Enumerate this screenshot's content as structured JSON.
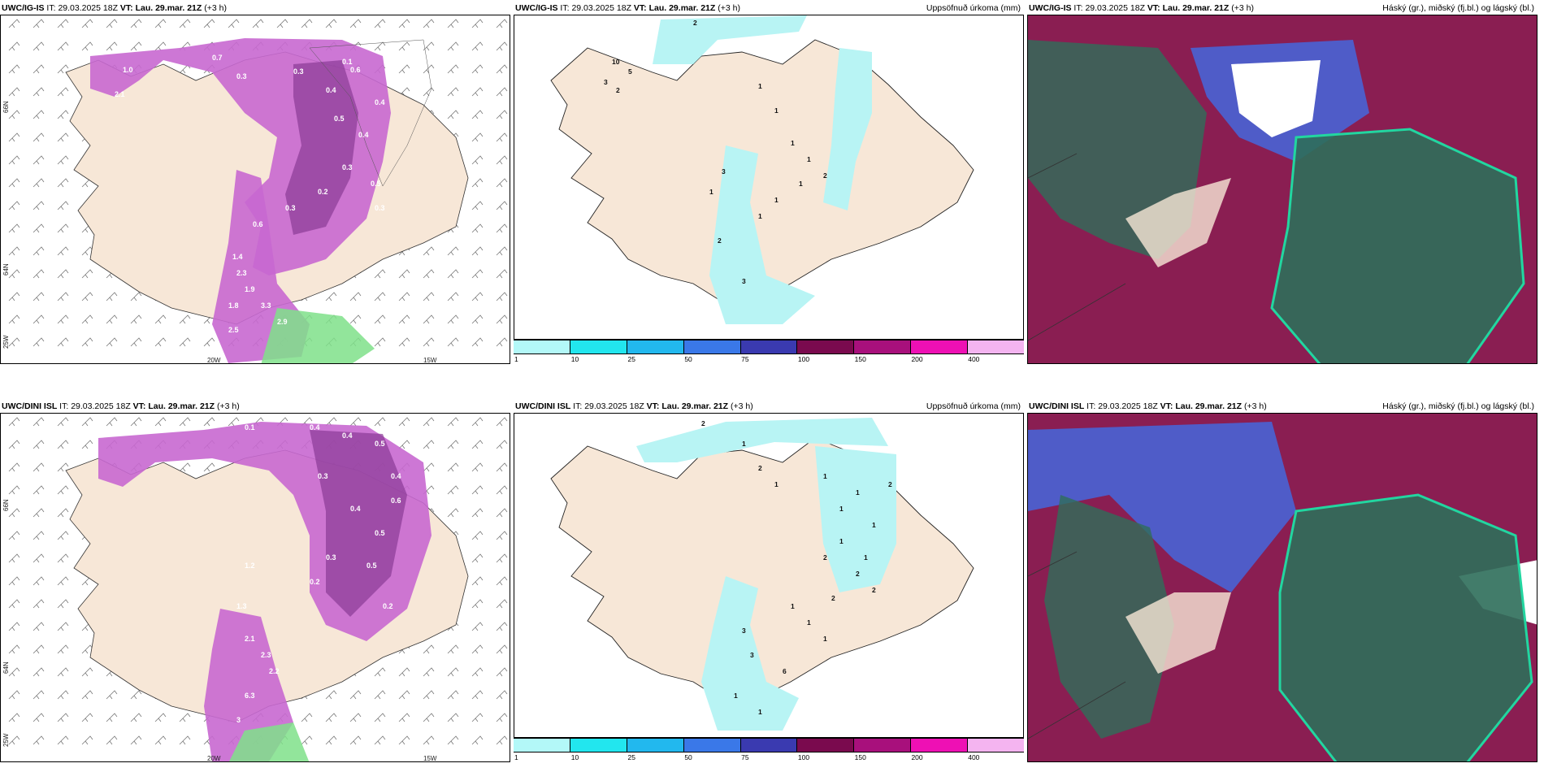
{
  "row1": {
    "p1": {
      "model": "UWC/IG-IS",
      "it_label": "IT:",
      "it": "29.03.2025 18Z",
      "vt_label": "VT:",
      "vt": "Lau. 29.mar. 21Z",
      "lead": "(+3 h)"
    },
    "p2": {
      "model": "UWC/IG-IS",
      "it_label": "IT:",
      "it": "29.03.2025 18Z",
      "vt_label": "VT:",
      "vt": "Lau. 29.mar. 21Z",
      "lead": "(+3 h)",
      "right": "Uppsöfnuð úrkoma (mm)"
    },
    "p3": {
      "model": "UWC/IG-IS",
      "it_label": "IT:",
      "it": "29.03.2025 18Z",
      "vt_label": "VT:",
      "vt": "Lau. 29.mar. 21Z",
      "lead": "(+3 h)",
      "right": "Háský (gr.), miðský (fj.bl.) og lágský (bl.)"
    }
  },
  "row2": {
    "p1": {
      "model": "UWC/DINI ISL",
      "it_label": "IT:",
      "it": "29.03.2025 18Z",
      "vt_label": "VT:",
      "vt": "Lau. 29.mar. 21Z",
      "lead": "(+3 h)"
    },
    "p2": {
      "model": "UWC/DINI ISL",
      "it_label": "IT:",
      "it": "29.03.2025 18Z",
      "vt_label": "VT:",
      "vt": "Lau. 29.mar. 21Z",
      "lead": "(+3 h)",
      "right": "Uppsöfnuð úrkoma (mm)"
    },
    "p3": {
      "model": "UWC/DINI ISL",
      "it_label": "IT:",
      "it": "29.03.2025 18Z",
      "vt_label": "VT:",
      "vt": "Lau. 29.mar. 21Z",
      "lead": "(+3 h)",
      "right": "Háský (gr.), miðský (fj.bl.) og lágský (bl.)"
    }
  },
  "axes": {
    "lon_20w": "20W",
    "lon_15w": "15W",
    "lon_25w": "25W",
    "lat_66n": "66N",
    "lat_64n": "64N"
  },
  "colorbar": {
    "ticks": [
      "1",
      "10",
      "25",
      "50",
      "75",
      "100",
      "150",
      "200",
      "400"
    ],
    "colors": [
      "#b3f8f8",
      "#22e6ee",
      "#22b8ee",
      "#3a78e8",
      "#3a3ab0",
      "#7a0a4e",
      "#a8107c",
      "#ee10b4",
      "#f4b4f0"
    ]
  },
  "colors": {
    "land": "#f7e7d7",
    "precip_cyan": "#b8f4f4",
    "snow_purple": "#c868d0",
    "snow_dark": "#8a3a96",
    "rain_green": "#7fe08a",
    "cloud_high": "#2e6e5a",
    "cloud_mid": "#8a1e52",
    "cloud_low": "#4f5cc8"
  },
  "labels": {
    "p1a": [
      "0.7",
      "0.3",
      "0.3",
      "0.4",
      "0.6",
      "0.5",
      "0.4",
      "0.3",
      "0.2",
      "0.5",
      "0.3",
      "0.6",
      "1.0",
      "2.1",
      "1.4",
      "2.3",
      "1.9",
      "3.3",
      "2.9",
      "1.8",
      "2.5",
      "0.1",
      "0.4",
      "0.3"
    ],
    "p1b": [
      "0.1",
      "0.4",
      "0.4",
      "0.5",
      "0.3",
      "0.6",
      "0.4",
      "0.5",
      "0.3",
      "0.2",
      "0.5",
      "1.2",
      "1.3",
      "2.1",
      "2.3",
      "2.2",
      "6.3",
      "3",
      "0.2",
      "0.4"
    ],
    "p2a": [
      "2",
      "10",
      "5",
      "3",
      "2",
      "1",
      "1",
      "1",
      "1",
      "2",
      "1",
      "1",
      "1",
      "3",
      "1",
      "2",
      "3"
    ],
    "p2b": [
      "2",
      "1",
      "2",
      "1",
      "1",
      "1",
      "2",
      "1",
      "1",
      "1",
      "2",
      "1",
      "2",
      "2",
      "2",
      "1",
      "1",
      "1",
      "3",
      "3",
      "6",
      "1",
      "1"
    ]
  }
}
